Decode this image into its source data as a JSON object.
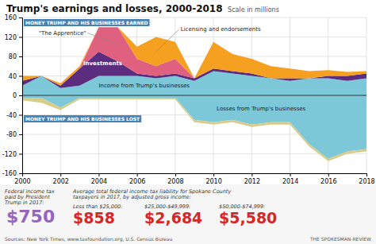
{
  "chart_data": {
    "type": "area",
    "title": "Trump's earnings and losses, 2000-2018",
    "subtitle": " Scale in millions",
    "stacked": true,
    "grid": true,
    "x": [
      2000,
      2001,
      2002,
      2003,
      2004,
      2005,
      2006,
      2007,
      2008,
      2009,
      2010,
      2011,
      2012,
      2013,
      2014,
      2015,
      2016,
      2017,
      2018
    ],
    "xlim": [
      2000,
      2018
    ],
    "xticks": [
      2000,
      2002,
      2004,
      2006,
      2008,
      2010,
      2012,
      2014,
      2016,
      2018
    ],
    "ylim": [
      -160,
      160
    ],
    "yticks": [
      -160,
      -120,
      -80,
      -40,
      0,
      40,
      80,
      120,
      160
    ],
    "series": [
      {
        "name": "Income from Trump's businesses",
        "color": "#7cc8d8",
        "values": [
          20,
          40,
          15,
          20,
          40,
          40,
          40,
          35,
          40,
          30,
          50,
          45,
          40,
          35,
          30,
          35,
          35,
          30,
          35
        ]
      },
      {
        "name": "Investments",
        "color": "#5c2d7f",
        "values": [
          10,
          0,
          5,
          35,
          50,
          30,
          5,
          5,
          5,
          5,
          5,
          5,
          5,
          0,
          5,
          0,
          5,
          10,
          10
        ]
      },
      {
        "name": "\"The Apprentice\"",
        "color": "#e06080",
        "values": [
          0,
          0,
          0,
          0,
          50,
          70,
          30,
          20,
          30,
          0,
          0,
          0,
          0,
          0,
          0,
          0,
          0,
          0,
          0
        ]
      },
      {
        "name": "Licensing and endorsements",
        "color": "#f5a020",
        "values": [
          10,
          0,
          5,
          5,
          0,
          0,
          25,
          60,
          35,
          0,
          55,
          35,
          30,
          25,
          20,
          15,
          12,
          8,
          5
        ]
      },
      {
        "name": "Losses from Trump's businesses",
        "color": "#7cc8d8",
        "values": [
          -5,
          -5,
          -25,
          -5,
          -5,
          -5,
          -5,
          -5,
          -5,
          -50,
          -55,
          -50,
          -60,
          -55,
          -55,
          -100,
          -130,
          -115,
          -110
        ]
      },
      {
        "color": "#d8cc8a",
        "values": [
          -5,
          -10,
          -5,
          -3,
          -3,
          -3,
          -3,
          -3,
          -3,
          -5,
          -5,
          -5,
          -5,
          -5,
          -5,
          -5,
          -5,
          -5,
          -5
        ]
      }
    ],
    "annotations": [
      "MONEY TRUMP AND HIS BUSINESSES EARNED",
      "MONEY TRUMP AND HIS BUSINESSES LOST",
      "Federal income tax",
      "paid by President",
      "Trump in 2017:",
      "$750",
      "Average total federal income tax liability for Spokane County",
      "taxpayers in 2017, by adjusted gross income:",
      "Less than $25,000:",
      "$858",
      "$25,000-$49,999:",
      "$2,684",
      "$50,000-$74,999:",
      "$5,580",
      "Sources: New York Times, www.taxfoundation.org, U.S. Census Bureau",
      "THE SPOKESMAN-REVIEW"
    ]
  }
}
